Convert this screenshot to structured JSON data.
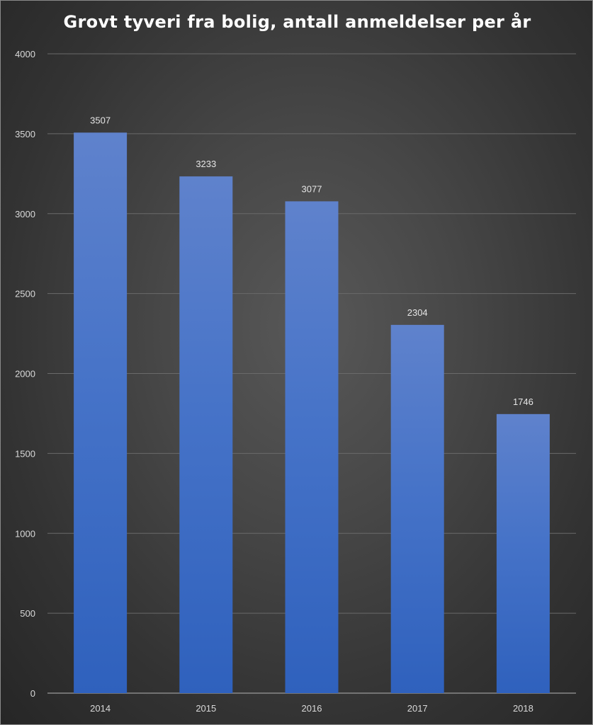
{
  "chart_data": {
    "type": "bar",
    "title": "Grovt tyveri fra bolig, antall anmeldelser per år",
    "categories": [
      "2014",
      "2015",
      "2016",
      "2017",
      "2018"
    ],
    "values": [
      3507,
      3233,
      3077,
      2304,
      1746
    ],
    "data_labels": [
      "3507",
      "3233",
      "3077",
      "2304",
      "1746"
    ],
    "ylim": [
      0,
      4000
    ],
    "yticks": [
      0,
      500,
      1000,
      1500,
      2000,
      2500,
      3000,
      3500,
      4000
    ],
    "grid": true,
    "legend": "none",
    "colors": {
      "bar_top": "#5f82cc",
      "bar_bottom": "#2f61bd",
      "background": "#474747",
      "gridline": "#6a6a6a",
      "text": "#d9d9d9"
    }
  }
}
